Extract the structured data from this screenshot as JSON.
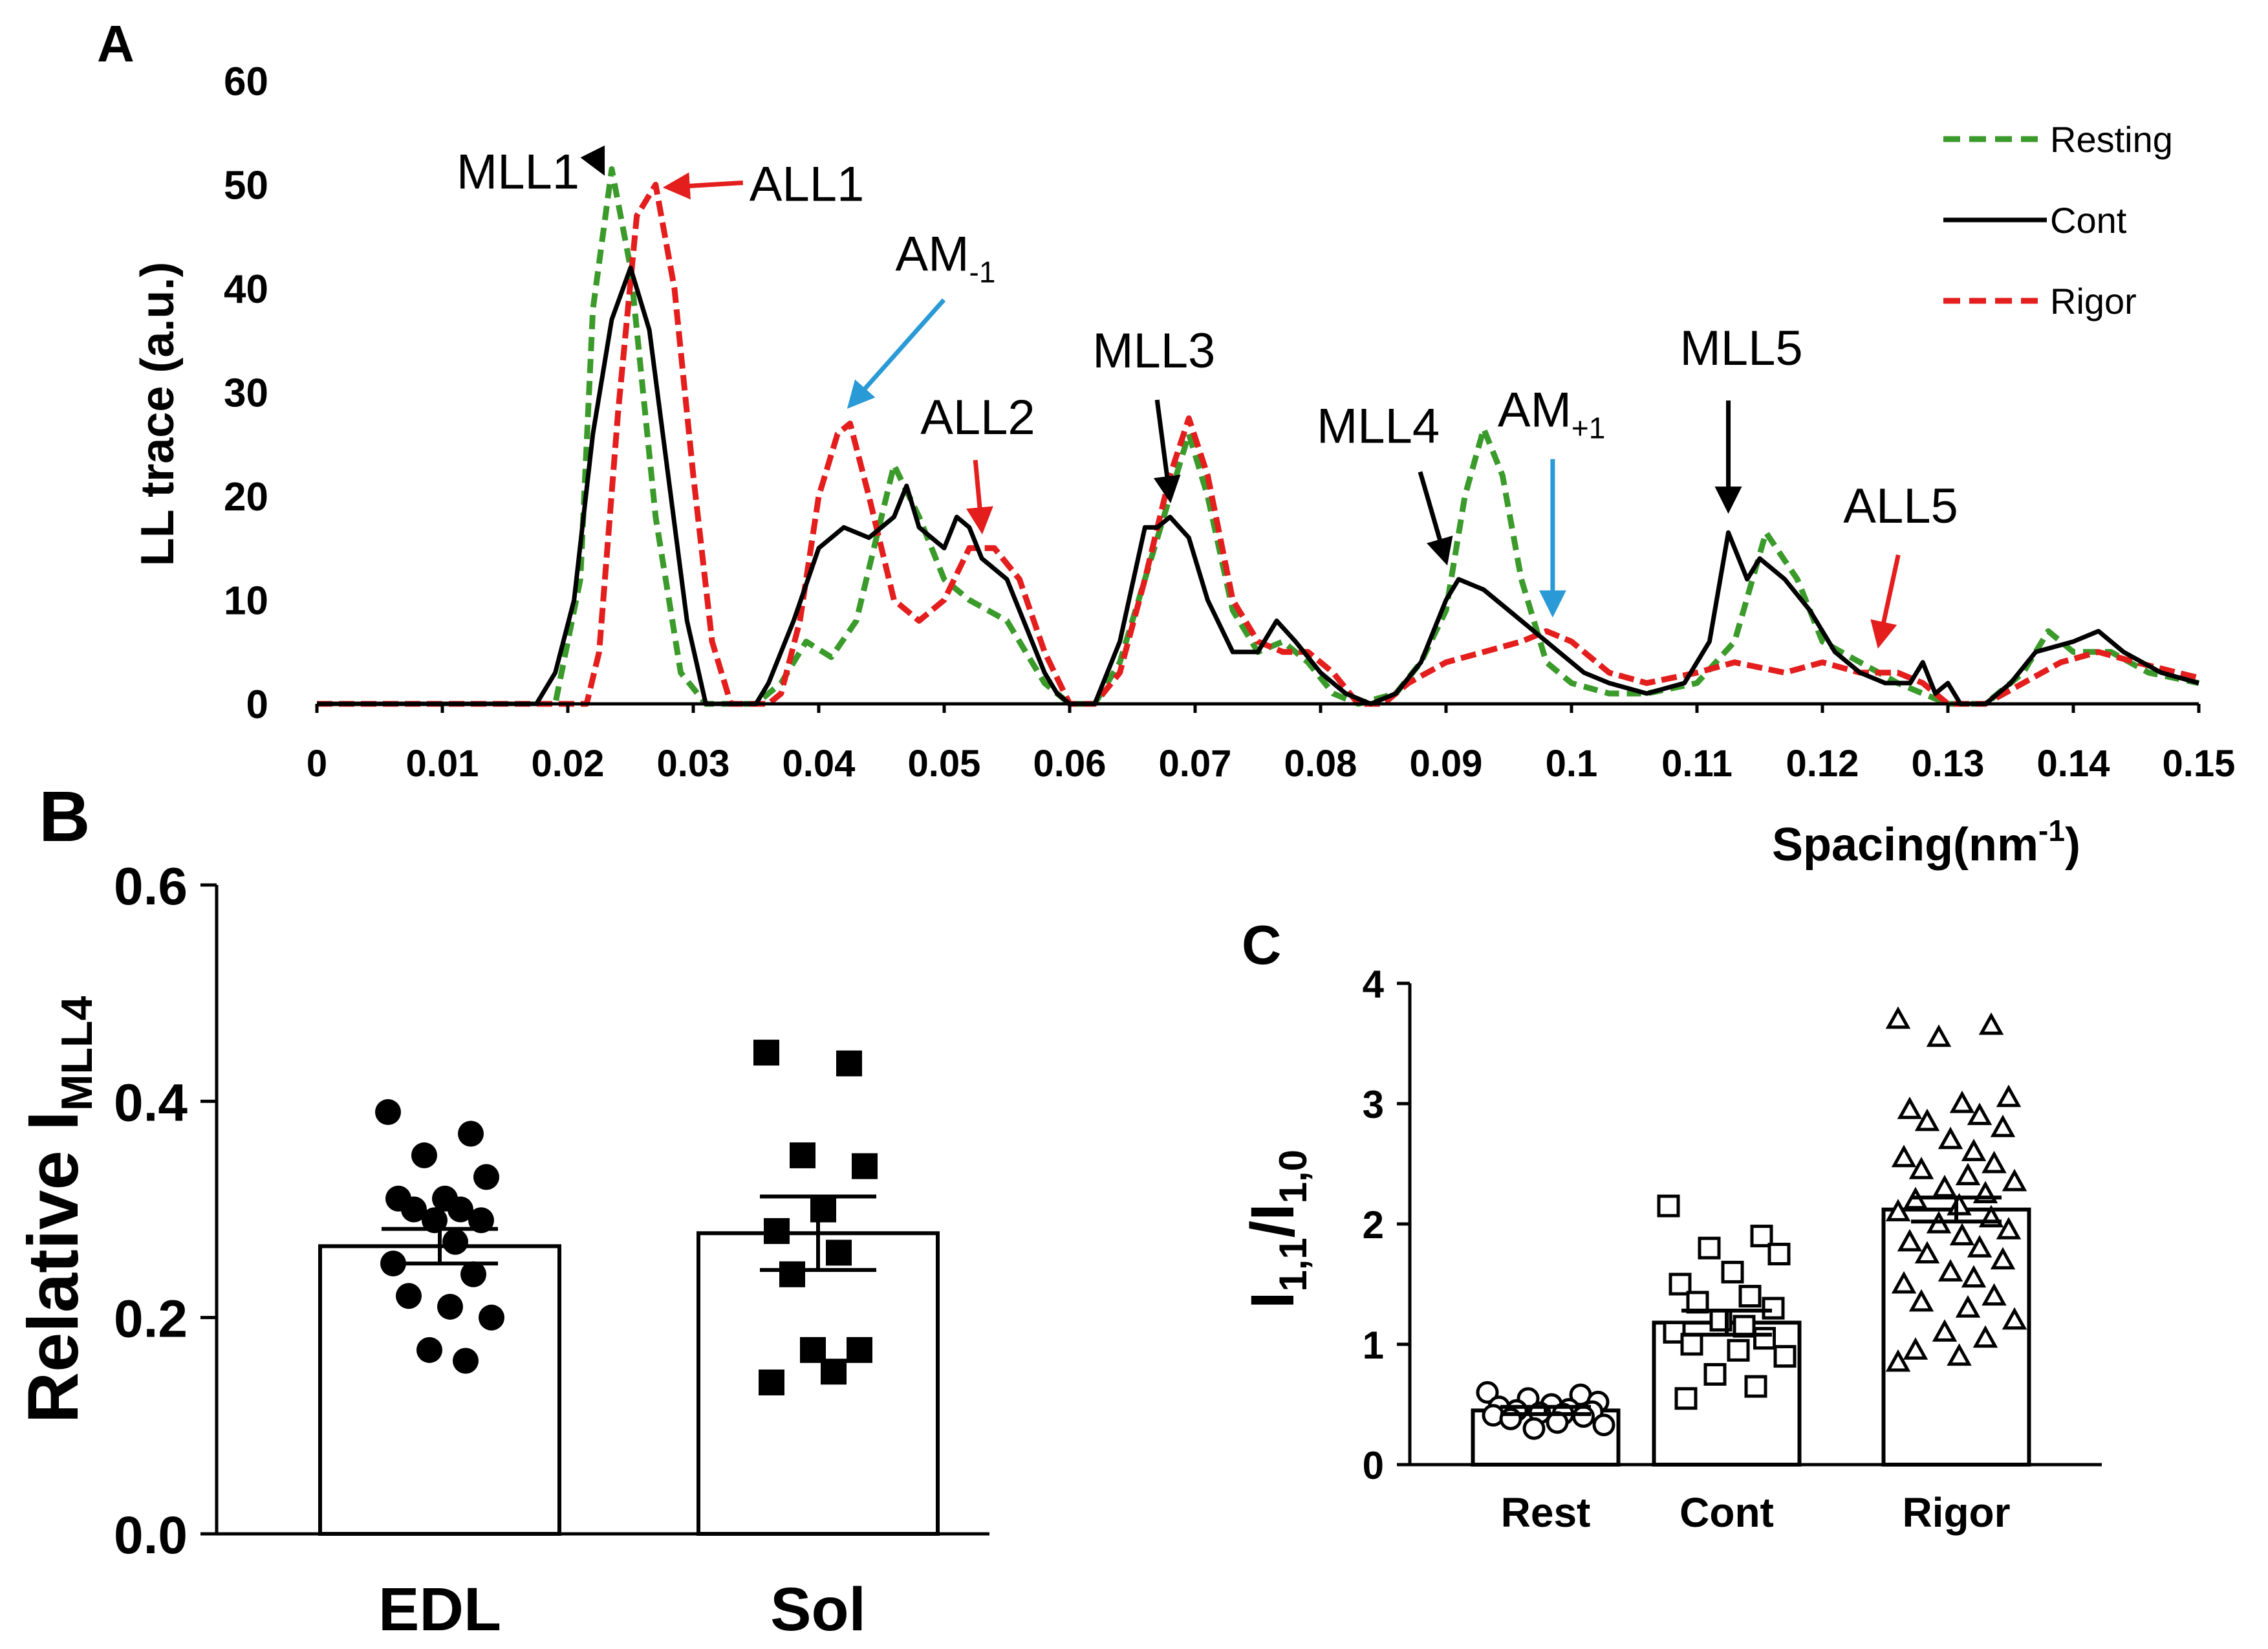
{
  "chart_data": [
    {
      "panel": "A",
      "type": "line",
      "xlabel": "Spacing(nm",
      "xlabel_sup": "-1",
      "xlabel_end": ")",
      "ylabel": "LL trace (a.u.)",
      "xlim": [
        0,
        0.15
      ],
      "ylim": [
        0,
        60
      ],
      "xticks": [
        "0",
        "0.01",
        "0.02",
        "0.03",
        "0.04",
        "0.05",
        "0.06",
        "0.07",
        "0.08",
        "0.09",
        "0.1",
        "0.11",
        "0.12",
        "0.13",
        "0.14",
        "0.15"
      ],
      "yticks": [
        "0",
        "10",
        "20",
        "30",
        "40",
        "50",
        "60"
      ],
      "legend_position": "top-right",
      "series": [
        {
          "name": "Resting",
          "color": "#3a9a2a",
          "style": "dashed",
          "points": [
            [
              0,
              0
            ],
            [
              0.019,
              0
            ],
            [
              0.021,
              12
            ],
            [
              0.022,
              38
            ],
            [
              0.0235,
              51.5
            ],
            [
              0.025,
              42
            ],
            [
              0.027,
              18
            ],
            [
              0.029,
              3
            ],
            [
              0.031,
              0
            ],
            [
              0.035,
              0
            ],
            [
              0.037,
              2
            ],
            [
              0.039,
              6
            ],
            [
              0.041,
              4.5
            ],
            [
              0.043,
              8
            ],
            [
              0.045,
              18
            ],
            [
              0.046,
              23
            ],
            [
              0.048,
              18
            ],
            [
              0.05,
              12
            ],
            [
              0.052,
              10
            ],
            [
              0.055,
              8
            ],
            [
              0.058,
              2
            ],
            [
              0.06,
              0
            ],
            [
              0.062,
              0
            ],
            [
              0.064,
              4
            ],
            [
              0.066,
              12
            ],
            [
              0.068,
              20
            ],
            [
              0.0695,
              26
            ],
            [
              0.071,
              20
            ],
            [
              0.073,
              9
            ],
            [
              0.075,
              5
            ],
            [
              0.077,
              6
            ],
            [
              0.079,
              4
            ],
            [
              0.081,
              1
            ],
            [
              0.083,
              0
            ],
            [
              0.086,
              1
            ],
            [
              0.088,
              4
            ],
            [
              0.09,
              9
            ],
            [
              0.0915,
              20
            ],
            [
              0.093,
              26.5
            ],
            [
              0.0945,
              22
            ],
            [
              0.096,
              12
            ],
            [
              0.098,
              4
            ],
            [
              0.1,
              2
            ],
            [
              0.103,
              1
            ],
            [
              0.106,
              1
            ],
            [
              0.11,
              2
            ],
            [
              0.113,
              6
            ],
            [
              0.1155,
              16.5
            ],
            [
              0.118,
              12
            ],
            [
              0.12,
              6
            ],
            [
              0.123,
              4
            ],
            [
              0.126,
              2
            ],
            [
              0.128,
              1
            ],
            [
              0.13,
              0
            ],
            [
              0.133,
              0
            ],
            [
              0.136,
              3
            ],
            [
              0.138,
              7
            ],
            [
              0.14,
              5
            ],
            [
              0.143,
              5
            ],
            [
              0.146,
              3
            ],
            [
              0.15,
              2
            ]
          ]
        },
        {
          "name": "Cont",
          "color": "#000000",
          "style": "solid",
          "points": [
            [
              0,
              0
            ],
            [
              0.0175,
              0
            ],
            [
              0.019,
              3
            ],
            [
              0.0205,
              10
            ],
            [
              0.022,
              26
            ],
            [
              0.0235,
              37
            ],
            [
              0.025,
              42
            ],
            [
              0.0265,
              36
            ],
            [
              0.028,
              22
            ],
            [
              0.0295,
              8
            ],
            [
              0.031,
              0
            ],
            [
              0.033,
              0
            ],
            [
              0.035,
              0
            ],
            [
              0.036,
              2
            ],
            [
              0.038,
              8
            ],
            [
              0.04,
              15
            ],
            [
              0.042,
              17
            ],
            [
              0.044,
              16
            ],
            [
              0.046,
              18
            ],
            [
              0.047,
              21
            ],
            [
              0.048,
              17
            ],
            [
              0.05,
              15
            ],
            [
              0.051,
              18
            ],
            [
              0.052,
              17
            ],
            [
              0.053,
              14
            ],
            [
              0.055,
              12
            ],
            [
              0.057,
              6
            ],
            [
              0.058,
              3
            ],
            [
              0.059,
              1
            ],
            [
              0.06,
              0
            ],
            [
              0.062,
              0
            ],
            [
              0.064,
              6
            ],
            [
              0.066,
              17
            ],
            [
              0.067,
              17
            ],
            [
              0.068,
              18
            ],
            [
              0.0695,
              16
            ],
            [
              0.071,
              10
            ],
            [
              0.073,
              5
            ],
            [
              0.075,
              5
            ],
            [
              0.0765,
              8
            ],
            [
              0.078,
              6
            ],
            [
              0.08,
              3
            ],
            [
              0.082,
              1
            ],
            [
              0.084,
              0
            ],
            [
              0.086,
              1
            ],
            [
              0.088,
              4
            ],
            [
              0.09,
              10
            ],
            [
              0.091,
              12
            ],
            [
              0.093,
              11
            ],
            [
              0.095,
              9
            ],
            [
              0.097,
              7
            ],
            [
              0.099,
              5
            ],
            [
              0.101,
              3
            ],
            [
              0.103,
              2
            ],
            [
              0.106,
              1
            ],
            [
              0.109,
              2
            ],
            [
              0.111,
              6
            ],
            [
              0.1125,
              16.5
            ],
            [
              0.114,
              12
            ],
            [
              0.115,
              14
            ],
            [
              0.117,
              12
            ],
            [
              0.119,
              9
            ],
            [
              0.121,
              5
            ],
            [
              0.123,
              3
            ],
            [
              0.125,
              2
            ],
            [
              0.127,
              2
            ],
            [
              0.128,
              4
            ],
            [
              0.129,
              1
            ],
            [
              0.13,
              2
            ],
            [
              0.131,
              0
            ],
            [
              0.133,
              0
            ],
            [
              0.135,
              2
            ],
            [
              0.137,
              5
            ],
            [
              0.14,
              6
            ],
            [
              0.142,
              7
            ],
            [
              0.144,
              5
            ],
            [
              0.147,
              3
            ],
            [
              0.15,
              2
            ]
          ]
        },
        {
          "name": "Rigor",
          "color": "#e41d1d",
          "style": "dashed",
          "points": [
            [
              0,
              0
            ],
            [
              0.0215,
              0
            ],
            [
              0.0225,
              5
            ],
            [
              0.024,
              28
            ],
            [
              0.0255,
              47
            ],
            [
              0.027,
              50
            ],
            [
              0.0285,
              40
            ],
            [
              0.03,
              22
            ],
            [
              0.0315,
              6
            ],
            [
              0.033,
              0
            ],
            [
              0.036,
              0
            ],
            [
              0.037,
              1
            ],
            [
              0.0385,
              8
            ],
            [
              0.04,
              20
            ],
            [
              0.0415,
              26
            ],
            [
              0.0425,
              27
            ],
            [
              0.044,
              20
            ],
            [
              0.046,
              10
            ],
            [
              0.048,
              8
            ],
            [
              0.05,
              10
            ],
            [
              0.052,
              15
            ],
            [
              0.054,
              15
            ],
            [
              0.056,
              12
            ],
            [
              0.058,
              5
            ],
            [
              0.06,
              0
            ],
            [
              0.062,
              0
            ],
            [
              0.064,
              3
            ],
            [
              0.066,
              12
            ],
            [
              0.068,
              22
            ],
            [
              0.0695,
              27.5
            ],
            [
              0.071,
              22
            ],
            [
              0.073,
              10
            ],
            [
              0.075,
              6
            ],
            [
              0.077,
              5
            ],
            [
              0.079,
              5
            ],
            [
              0.081,
              3
            ],
            [
              0.083,
              0
            ],
            [
              0.085,
              0
            ],
            [
              0.087,
              2
            ],
            [
              0.09,
              4
            ],
            [
              0.093,
              5
            ],
            [
              0.096,
              6
            ],
            [
              0.098,
              7
            ],
            [
              0.1,
              6
            ],
            [
              0.103,
              3
            ],
            [
              0.106,
              2
            ],
            [
              0.11,
              3
            ],
            [
              0.113,
              4
            ],
            [
              0.117,
              3
            ],
            [
              0.12,
              4
            ],
            [
              0.123,
              3
            ],
            [
              0.126,
              3
            ],
            [
              0.128,
              2
            ],
            [
              0.13,
              0
            ],
            [
              0.133,
              0
            ],
            [
              0.136,
              2
            ],
            [
              0.139,
              4
            ],
            [
              0.142,
              5
            ],
            [
              0.145,
              4
            ],
            [
              0.15,
              2.5
            ]
          ]
        }
      ],
      "annotations": [
        {
          "label": "MLL1",
          "color": "#000000",
          "at": [
            0.0235,
            51.5
          ]
        },
        {
          "label": "ALL1",
          "color": "#e41d1d",
          "at": [
            0.027,
            50
          ]
        },
        {
          "label": "AM",
          "sub": "-1",
          "color": "#2a9ad6",
          "at": [
            0.0425,
            28
          ]
        },
        {
          "label": "ALL2",
          "color": "#e41d1d",
          "at": [
            0.053,
            16
          ]
        },
        {
          "label": "MLL3",
          "color": "#000000",
          "at": [
            0.068,
            19
          ]
        },
        {
          "label": "MLL4",
          "color": "#000000",
          "at": [
            0.09,
            13
          ]
        },
        {
          "label": "AM",
          "sub": "+1",
          "color": "#2a9ad6",
          "at": [
            0.0985,
            8
          ]
        },
        {
          "label": "MLL5",
          "color": "#000000",
          "at": [
            0.1125,
            18
          ]
        },
        {
          "label": "ALL5",
          "color": "#e41d1d",
          "at": [
            0.1245,
            5
          ]
        }
      ]
    },
    {
      "panel": "B",
      "type": "bar",
      "categories": [
        "EDL",
        "Sol"
      ],
      "values": [
        0.266,
        0.278
      ],
      "sem": [
        0.016,
        0.034
      ],
      "ylabel": "Relative I",
      "ylabel_sub": "MLL4",
      "ylim": [
        0,
        0.6
      ],
      "yticks": [
        "0.0",
        "0.2",
        "0.4",
        "0.6"
      ],
      "points": [
        [
          0.39,
          0.37,
          0.35,
          0.33,
          0.31,
          0.31,
          0.3,
          0.3,
          0.29,
          0.29,
          0.27,
          0.25,
          0.24,
          0.22,
          0.21,
          0.2,
          0.17,
          0.16
        ],
        [
          0.445,
          0.435,
          0.35,
          0.34,
          0.3,
          0.28,
          0.26,
          0.24,
          0.17,
          0.17,
          0.15,
          0.14
        ]
      ],
      "markers": [
        "circle",
        "square"
      ]
    },
    {
      "panel": "C",
      "type": "bar",
      "categories": [
        "Rest",
        "Cont",
        "Rigor"
      ],
      "values": [
        0.45,
        1.18,
        2.12
      ],
      "sem": [
        0.03,
        0.1,
        0.1
      ],
      "ylabel": "I",
      "ylabel_sub1": "1,1",
      "ylabel_mid": "/I",
      "ylabel_sub2": "1,0",
      "ylim": [
        0,
        4
      ],
      "yticks": [
        "0",
        "1",
        "2",
        "3",
        "4"
      ],
      "points": [
        [
          0.6,
          0.58,
          0.55,
          0.52,
          0.5,
          0.48,
          0.46,
          0.45,
          0.44,
          0.43,
          0.42,
          0.41,
          0.4,
          0.38,
          0.35,
          0.33,
          0.3
        ],
        [
          2.15,
          1.9,
          1.8,
          1.75,
          1.6,
          1.5,
          1.4,
          1.35,
          1.3,
          1.2,
          1.15,
          1.1,
          1.05,
          1.0,
          0.95,
          0.9,
          0.75,
          0.65,
          0.55
        ],
        [
          3.7,
          3.65,
          3.55,
          3.05,
          3.0,
          2.95,
          2.9,
          2.85,
          2.8,
          2.7,
          2.6,
          2.55,
          2.5,
          2.45,
          2.4,
          2.35,
          2.3,
          2.25,
          2.2,
          2.15,
          2.1,
          2.05,
          2.0,
          1.95,
          1.9,
          1.85,
          1.8,
          1.75,
          1.7,
          1.6,
          1.55,
          1.5,
          1.4,
          1.35,
          1.3,
          1.2,
          1.1,
          1.05,
          0.95,
          0.9,
          0.85
        ]
      ],
      "markers": [
        "circle",
        "square",
        "triangle"
      ]
    }
  ],
  "panel_labels": [
    "A",
    "B",
    "C"
  ]
}
